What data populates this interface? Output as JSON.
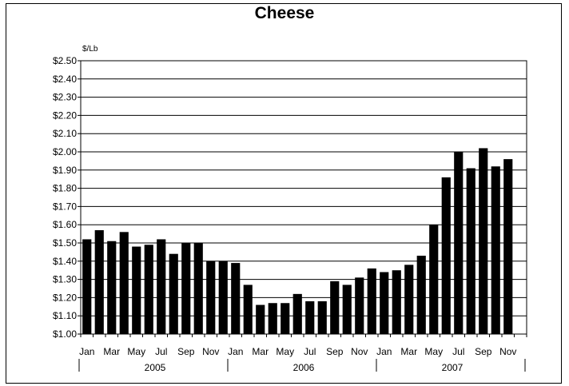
{
  "chart_data": {
    "type": "bar",
    "title": "Cheese",
    "y_unit_label": "$/Lb",
    "xlabel": "",
    "ylabel": "",
    "ylim": [
      1.0,
      2.5
    ],
    "y_tick_step": 0.1,
    "y_tick_labels": [
      "$1.00",
      "$1.10",
      "$1.20",
      "$1.30",
      "$1.40",
      "$1.50",
      "$1.60",
      "$1.70",
      "$1.80",
      "$1.90",
      "$2.00",
      "$2.10",
      "$2.20",
      "$2.30",
      "$2.40",
      "$2.50"
    ],
    "grid": true,
    "legend": "none",
    "bar_color": "#000000",
    "categories": [
      "Jan 2005",
      "Feb 2005",
      "Mar 2005",
      "Apr 2005",
      "May 2005",
      "Jun 2005",
      "Jul 2005",
      "Aug 2005",
      "Sep 2005",
      "Oct 2005",
      "Nov 2005",
      "Dec 2005",
      "Jan 2006",
      "Feb 2006",
      "Mar 2006",
      "Apr 2006",
      "May 2006",
      "Jun 2006",
      "Jul 2006",
      "Aug 2006",
      "Sep 2006",
      "Oct 2006",
      "Nov 2006",
      "Dec 2006",
      "Jan 2007",
      "Feb 2007",
      "Mar 2007",
      "Apr 2007",
      "May 2007",
      "Jun 2007",
      "Jul 2007",
      "Aug 2007",
      "Sep 2007",
      "Oct 2007",
      "Nov 2007"
    ],
    "values": [
      1.52,
      1.57,
      1.51,
      1.56,
      1.48,
      1.49,
      1.52,
      1.44,
      1.5,
      1.5,
      1.4,
      1.4,
      1.39,
      1.27,
      1.16,
      1.17,
      1.17,
      1.22,
      1.18,
      1.18,
      1.29,
      1.27,
      1.31,
      1.36,
      1.34,
      1.35,
      1.38,
      1.43,
      1.6,
      1.86,
      2.0,
      1.91,
      2.02,
      1.92,
      1.96
    ],
    "total_slots": 36,
    "x_tick_labels": [
      "Jan",
      "Mar",
      "May",
      "Jul",
      "Sep",
      "Nov",
      "Jan",
      "Mar",
      "May",
      "Jul",
      "Sep",
      "Nov",
      "Jan",
      "Mar",
      "May",
      "Jul",
      "Sep",
      "Nov"
    ],
    "x_tick_label_interval": 2,
    "years": [
      "2005",
      "2006",
      "2007"
    ]
  }
}
